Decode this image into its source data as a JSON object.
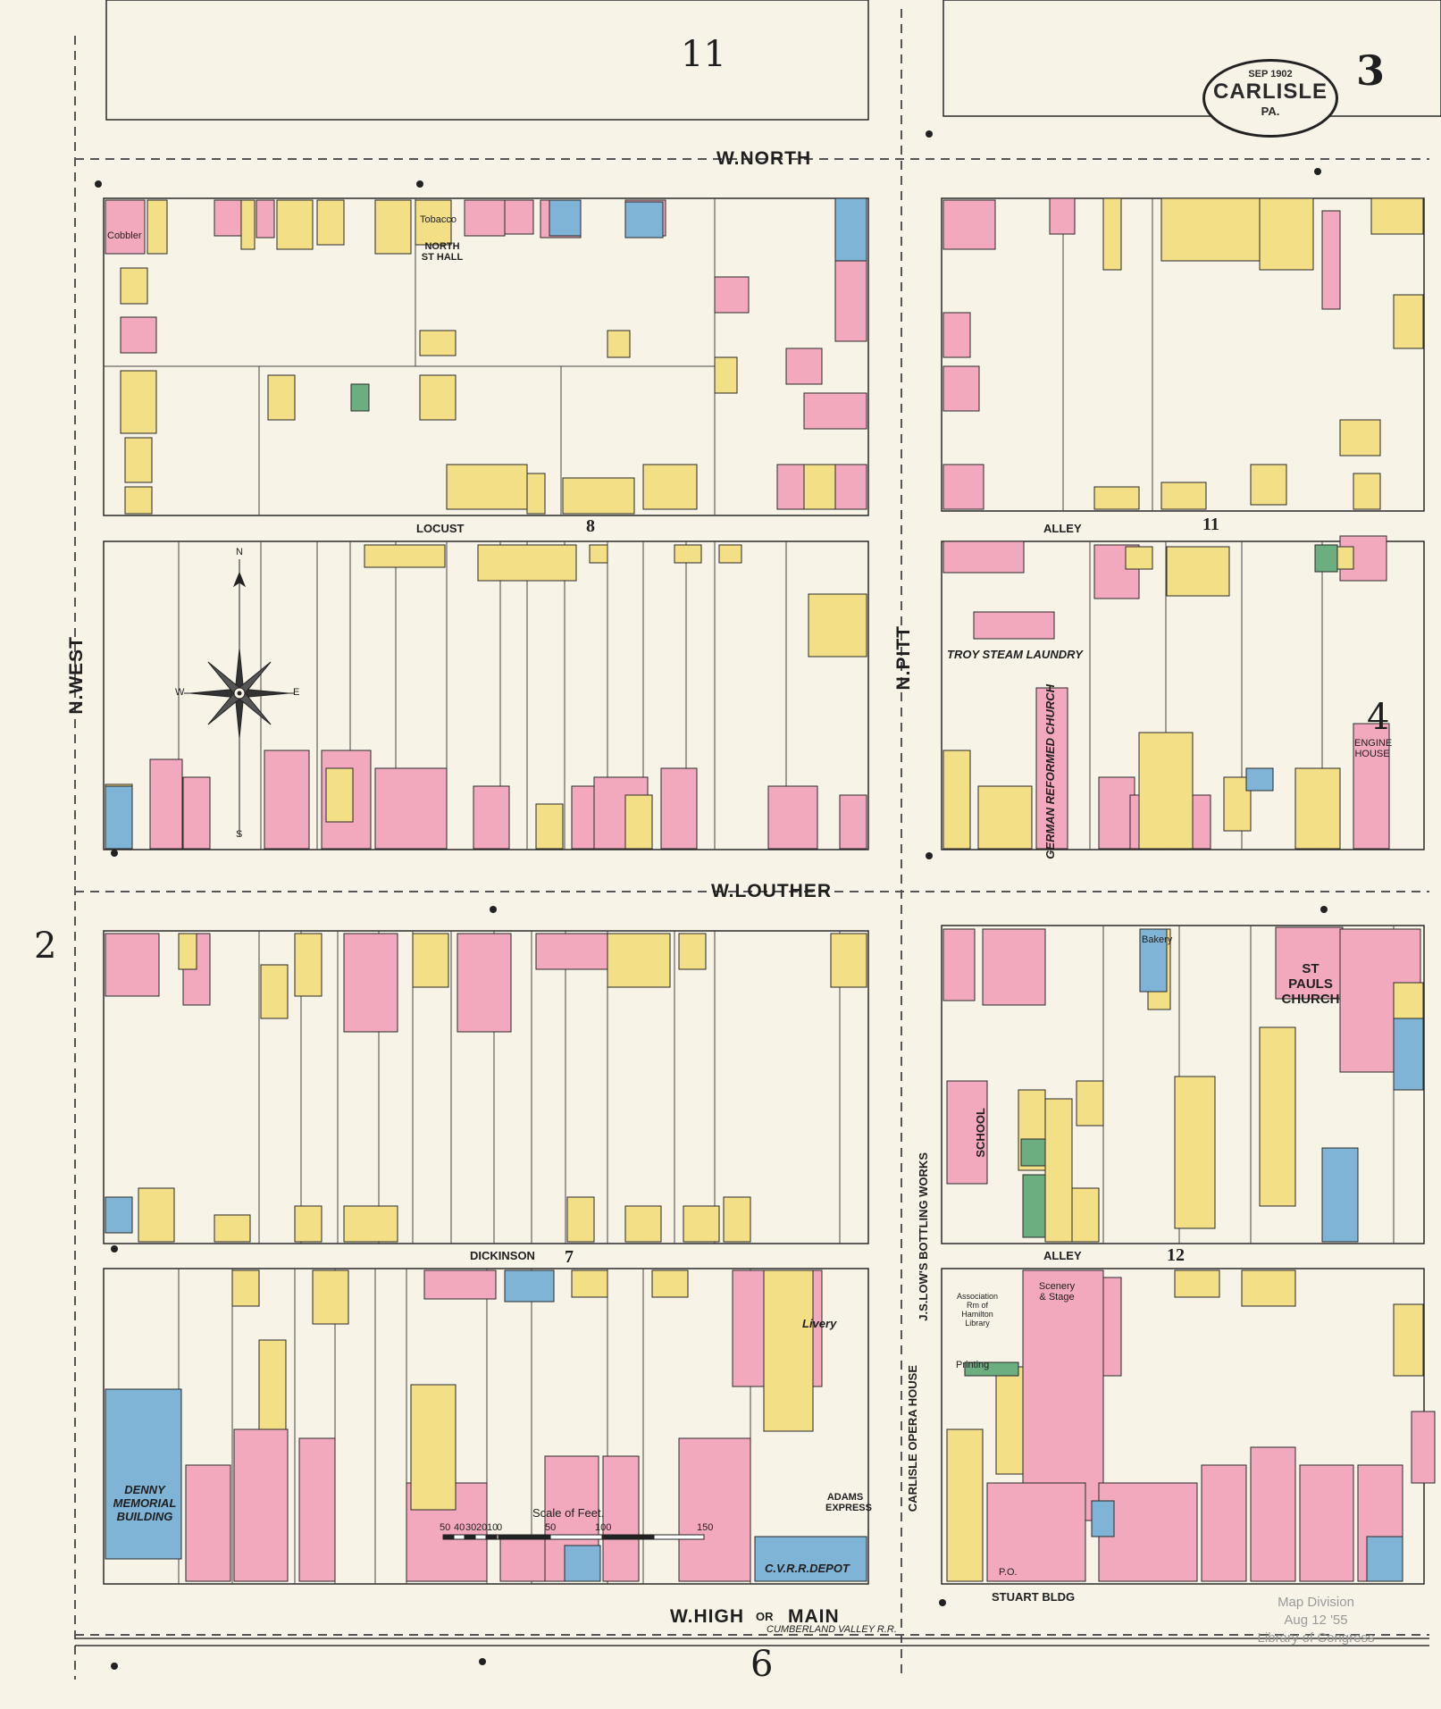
{
  "sheet": {
    "number": "3",
    "date": "SEP 1902",
    "city": "CARLISLE",
    "state": "PA."
  },
  "adjacent_sheets": {
    "top": "11",
    "bottom": "6",
    "left": "2",
    "right": "4"
  },
  "block_numbers": {
    "b8": "8",
    "b11": "11",
    "b7": "7",
    "b12": "12"
  },
  "streets": {
    "north": "W.NORTH",
    "louther": "W.LOUTHER",
    "high": "W.HIGH",
    "high_or": "OR",
    "main": "MAIN",
    "west": "N.WEST",
    "pitt": "N.PITT",
    "locust": "LOCUST",
    "dickinson": "DICKINSON",
    "alley_top": "ALLEY",
    "alley_bottom": "ALLEY",
    "railroad": "CUMBERLAND VALLEY R.R."
  },
  "buildings": {
    "north_st_hall": "NORTH ST HALL",
    "tobacco": "Tobacco",
    "cobbler": "Cobbler",
    "troy_laundry": "TROY STEAM LAUNDRY",
    "german_church": "GERMAN REFORMED CHURCH",
    "engine_house": "ENGINE HOUSE",
    "st_pauls": "ST PAULS CHURCH",
    "school": "SCHOOL",
    "bottling": "J.S.LOW'S BOTTLING WORKS",
    "opera_house": "CARLISLE OPERA HOUSE",
    "scenery": "Scenery & Stage",
    "denny": "DENNY MEMORIAL BUILDING",
    "livery": "Livery",
    "adams": "ADAMS EXPRESS",
    "depot": "C.V.R.R.DEPOT",
    "stuart": "STUART BLDG",
    "bakery": "Bakery",
    "po": "P.O.",
    "printing": "Printing",
    "library": "Association Rm of Hamilton Library"
  },
  "scale": {
    "title": "Scale of Feet.",
    "ticks": [
      "50",
      "40",
      "30",
      "20",
      "10",
      "0",
      "50",
      "100",
      "150"
    ]
  },
  "compass": {
    "n": "N",
    "s": "S",
    "e": "E",
    "w": "W"
  },
  "stamp": {
    "line1": "Map Division",
    "line2": "Aug 12 '55",
    "line3": "Library of Congress"
  },
  "palette": {
    "paper": "#f7f3e6",
    "brick": "#f2a9bd",
    "frame": "#f2df86",
    "stone": "#7fb4d6",
    "green": "#6cae7f",
    "line": "#2a2a2a"
  }
}
